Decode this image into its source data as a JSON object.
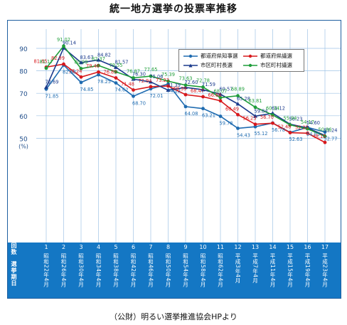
{
  "page": {
    "title": "統一地方選挙の投票率推移",
    "source": "（公財）明るい選挙推進協会HPより"
  },
  "axis": {
    "y_unit": "(%)",
    "row_header_count": "回数",
    "row_header_date": "選挙期日"
  },
  "chart_data": {
    "type": "line",
    "title": "統一地方選挙の投票率推移",
    "ylim": [
      40,
      95
    ],
    "yticks": [
      50,
      60,
      70,
      80,
      90
    ],
    "grid": true,
    "legend_position": "top-right",
    "categories": [
      "1",
      "2",
      "3",
      "4",
      "5",
      "6",
      "7",
      "8",
      "9",
      "10",
      "11",
      "12",
      "13",
      "14",
      "15",
      "16",
      "17"
    ],
    "dates": [
      "昭和22年4月",
      "昭和26年4月",
      "昭和30年4月",
      "昭和34年4月",
      "昭和38年4月",
      "昭和42年4月",
      "昭和46年4月",
      "昭和50年4月",
      "昭和54年4月",
      "昭和58年4月",
      "昭和62年4月",
      "平成3年4月",
      "平成7年4月",
      "平成11年4月",
      "平成15年4月",
      "平成19年4月",
      "平成23年4月"
    ],
    "series": [
      {
        "name": "都道府県知事選",
        "color": "#1e6bb0",
        "values": [
          71.85,
          82.58,
          74.85,
          78.25,
          74.62,
          68.7,
          72.01,
          74.12,
          64.08,
          63.21,
          59.78,
          54.43,
          55.12,
          56.78,
          52.63,
          54.85,
          52.77
        ]
      },
      {
        "name": "都道府県議選",
        "color": "#d7191c",
        "values": [
          81.65,
          82.99,
          77.24,
          79.48,
          76.85,
          71.48,
          72.94,
          73.23,
          69.39,
          68.47,
          66.66,
          60.49,
          56.23,
          56.7,
          52.48,
          52.25,
          48.15
        ]
      },
      {
        "name": "市区町村長選",
        "color": "#1a3a8c",
        "values": [
          72.69,
          90.14,
          83.67,
          84.82,
          81.57,
          76.3,
          75.06,
          71.39,
          72.6,
          71.59,
          69.57,
          65.28,
          59.84,
          61.12,
          56.23,
          54.6,
          51.24
        ]
      },
      {
        "name": "市区町村議選",
        "color": "#1f9e3a",
        "values": [
          81.17,
          91.02,
          80.99,
          82.37,
          79.55,
          76.87,
          77.65,
          75.39,
          73.63,
          72.78,
          68.07,
          68.89,
          63.81,
          60.34,
          55.94,
          54.17,
          50.86
        ]
      }
    ]
  }
}
